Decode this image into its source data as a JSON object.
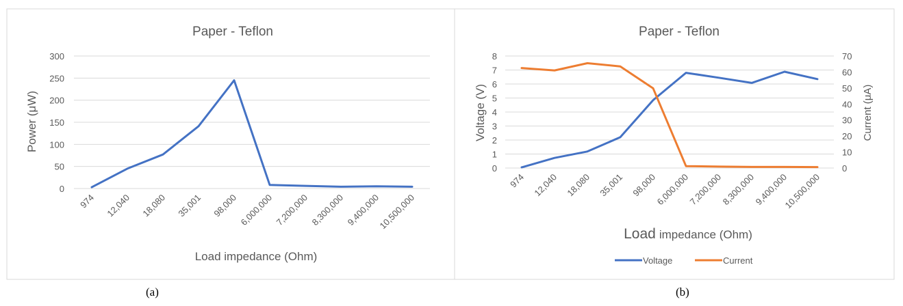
{
  "chart_data": [
    {
      "type": "line",
      "title": "Paper - Teflon",
      "xlabel": "Load impedance (Ohm)",
      "ylabel": "Power (μW)",
      "categories": [
        "974",
        "12,040",
        "18,080",
        "35,001",
        "98,000",
        "6,000,000",
        "7,200,000",
        "8,300,000",
        "9,400,000",
        "10,500,000"
      ],
      "ylim": [
        0,
        300
      ],
      "yticks": [
        0,
        50,
        100,
        150,
        200,
        250,
        300
      ],
      "grid": true,
      "series": [
        {
          "values": [
            3,
            45,
            77,
            141,
            245,
            8,
            6,
            4,
            5,
            4
          ],
          "color": "#4472C4"
        }
      ],
      "caption": "(a)"
    },
    {
      "type": "line",
      "title": "Paper - Teflon",
      "xlabel_main": "Load",
      "xlabel_rest": "impedance (Ohm)",
      "ylabel": "Voltage (V)",
      "y2label": "Current (μA)",
      "categories": [
        "974",
        "12,040",
        "18,080",
        "35,001",
        "98,000",
        "6,000,000",
        "7,200,000",
        "8,300,000",
        "9,400,000",
        "10,500,000"
      ],
      "ylim": [
        0,
        8
      ],
      "yticks": [
        0,
        1,
        2,
        3,
        4,
        5,
        6,
        7,
        8
      ],
      "y2lim": [
        0,
        70
      ],
      "y2ticks": [
        0,
        10,
        20,
        30,
        40,
        50,
        60,
        70
      ],
      "grid": true,
      "legend": "bottom",
      "series": [
        {
          "name": "Voltage",
          "axis": "left",
          "values": [
            0.05,
            0.72,
            1.18,
            2.2,
            4.85,
            6.8,
            6.45,
            6.08,
            6.88,
            6.35
          ],
          "color": "#4472C4"
        },
        {
          "name": "Current",
          "axis": "right",
          "values": [
            62.5,
            61,
            65.5,
            63.5,
            49.8,
            1.2,
            0.9,
            0.7,
            0.7,
            0.6
          ],
          "color": "#ED7D31"
        }
      ],
      "caption": "(b)"
    }
  ]
}
